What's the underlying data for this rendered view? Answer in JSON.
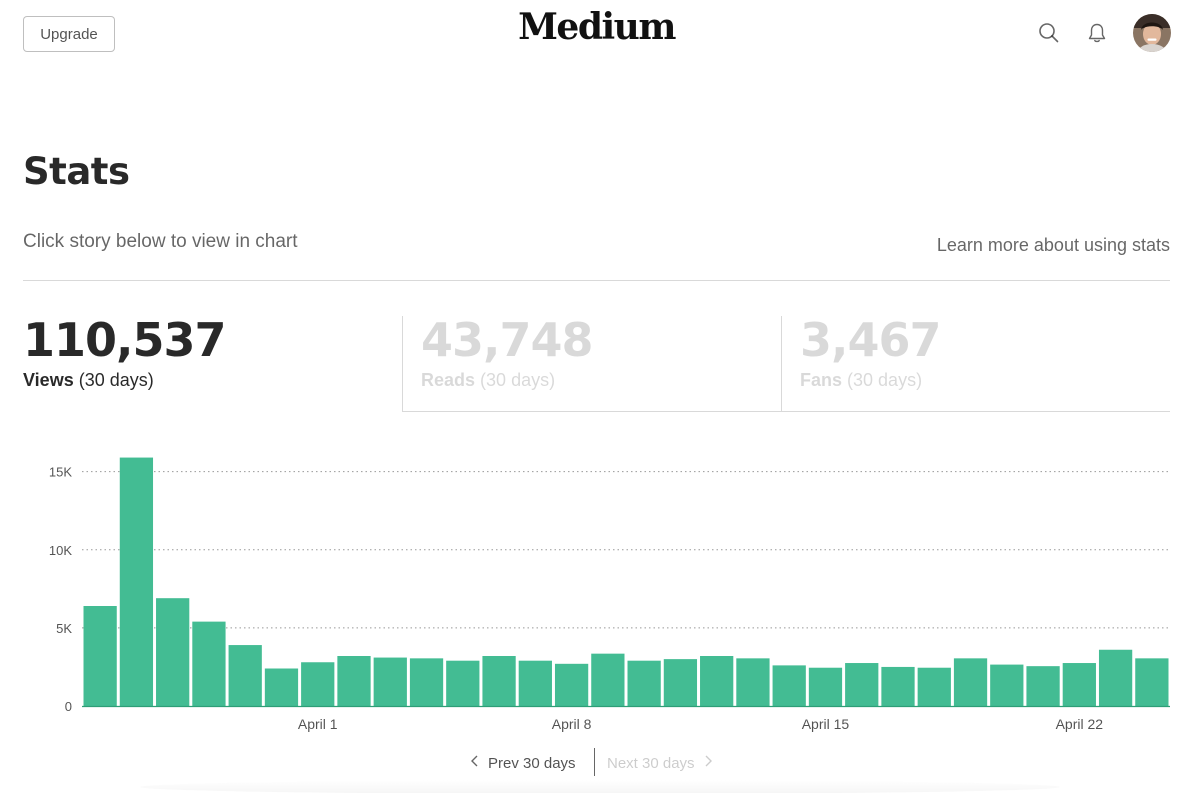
{
  "header": {
    "upgrade_label": "Upgrade",
    "logo_text": "Medium",
    "icons": [
      "search-icon",
      "bell-icon"
    ]
  },
  "page": {
    "title": "Stats",
    "subtitle": "Click story below to view in chart",
    "learn_more": "Learn more about using stats"
  },
  "summary": {
    "views": {
      "value": "110,537",
      "label": "Views",
      "period": "(30 days)"
    },
    "reads": {
      "value": "43,748",
      "label": "Reads",
      "period": "(30 days)"
    },
    "fans": {
      "value": "3,467",
      "label": "Fans",
      "period": "(30 days)"
    }
  },
  "pager": {
    "prev_label": "Prev 30 days",
    "next_label": "Next 30 days"
  },
  "colors": {
    "bar": "#43bc93",
    "bar_edge": "#2e9e77",
    "grid": "#999999"
  },
  "chart_data": {
    "type": "bar",
    "series": [
      {
        "values": [
          6400,
          15900,
          6900,
          5400,
          3900,
          2400,
          2800,
          3200,
          3100,
          3050,
          2900,
          3200,
          2900,
          2700,
          3350,
          2900,
          3000,
          3200,
          3050,
          2600,
          2450,
          2750,
          2500,
          2450,
          3050,
          2650,
          2550,
          2750,
          3600,
          3050
        ]
      }
    ],
    "ylim": [
      0,
      16000
    ],
    "yticks": [
      0,
      5000,
      10000,
      15000
    ],
    "ytick_labels": [
      "0",
      "5K",
      "10K",
      "15K"
    ],
    "xtick_labels": [
      "April 1",
      "April 8",
      "April 15",
      "April 22"
    ],
    "xtick_bar_index": [
      6.5,
      13.5,
      20.5,
      27.5
    ],
    "grid": true
  }
}
